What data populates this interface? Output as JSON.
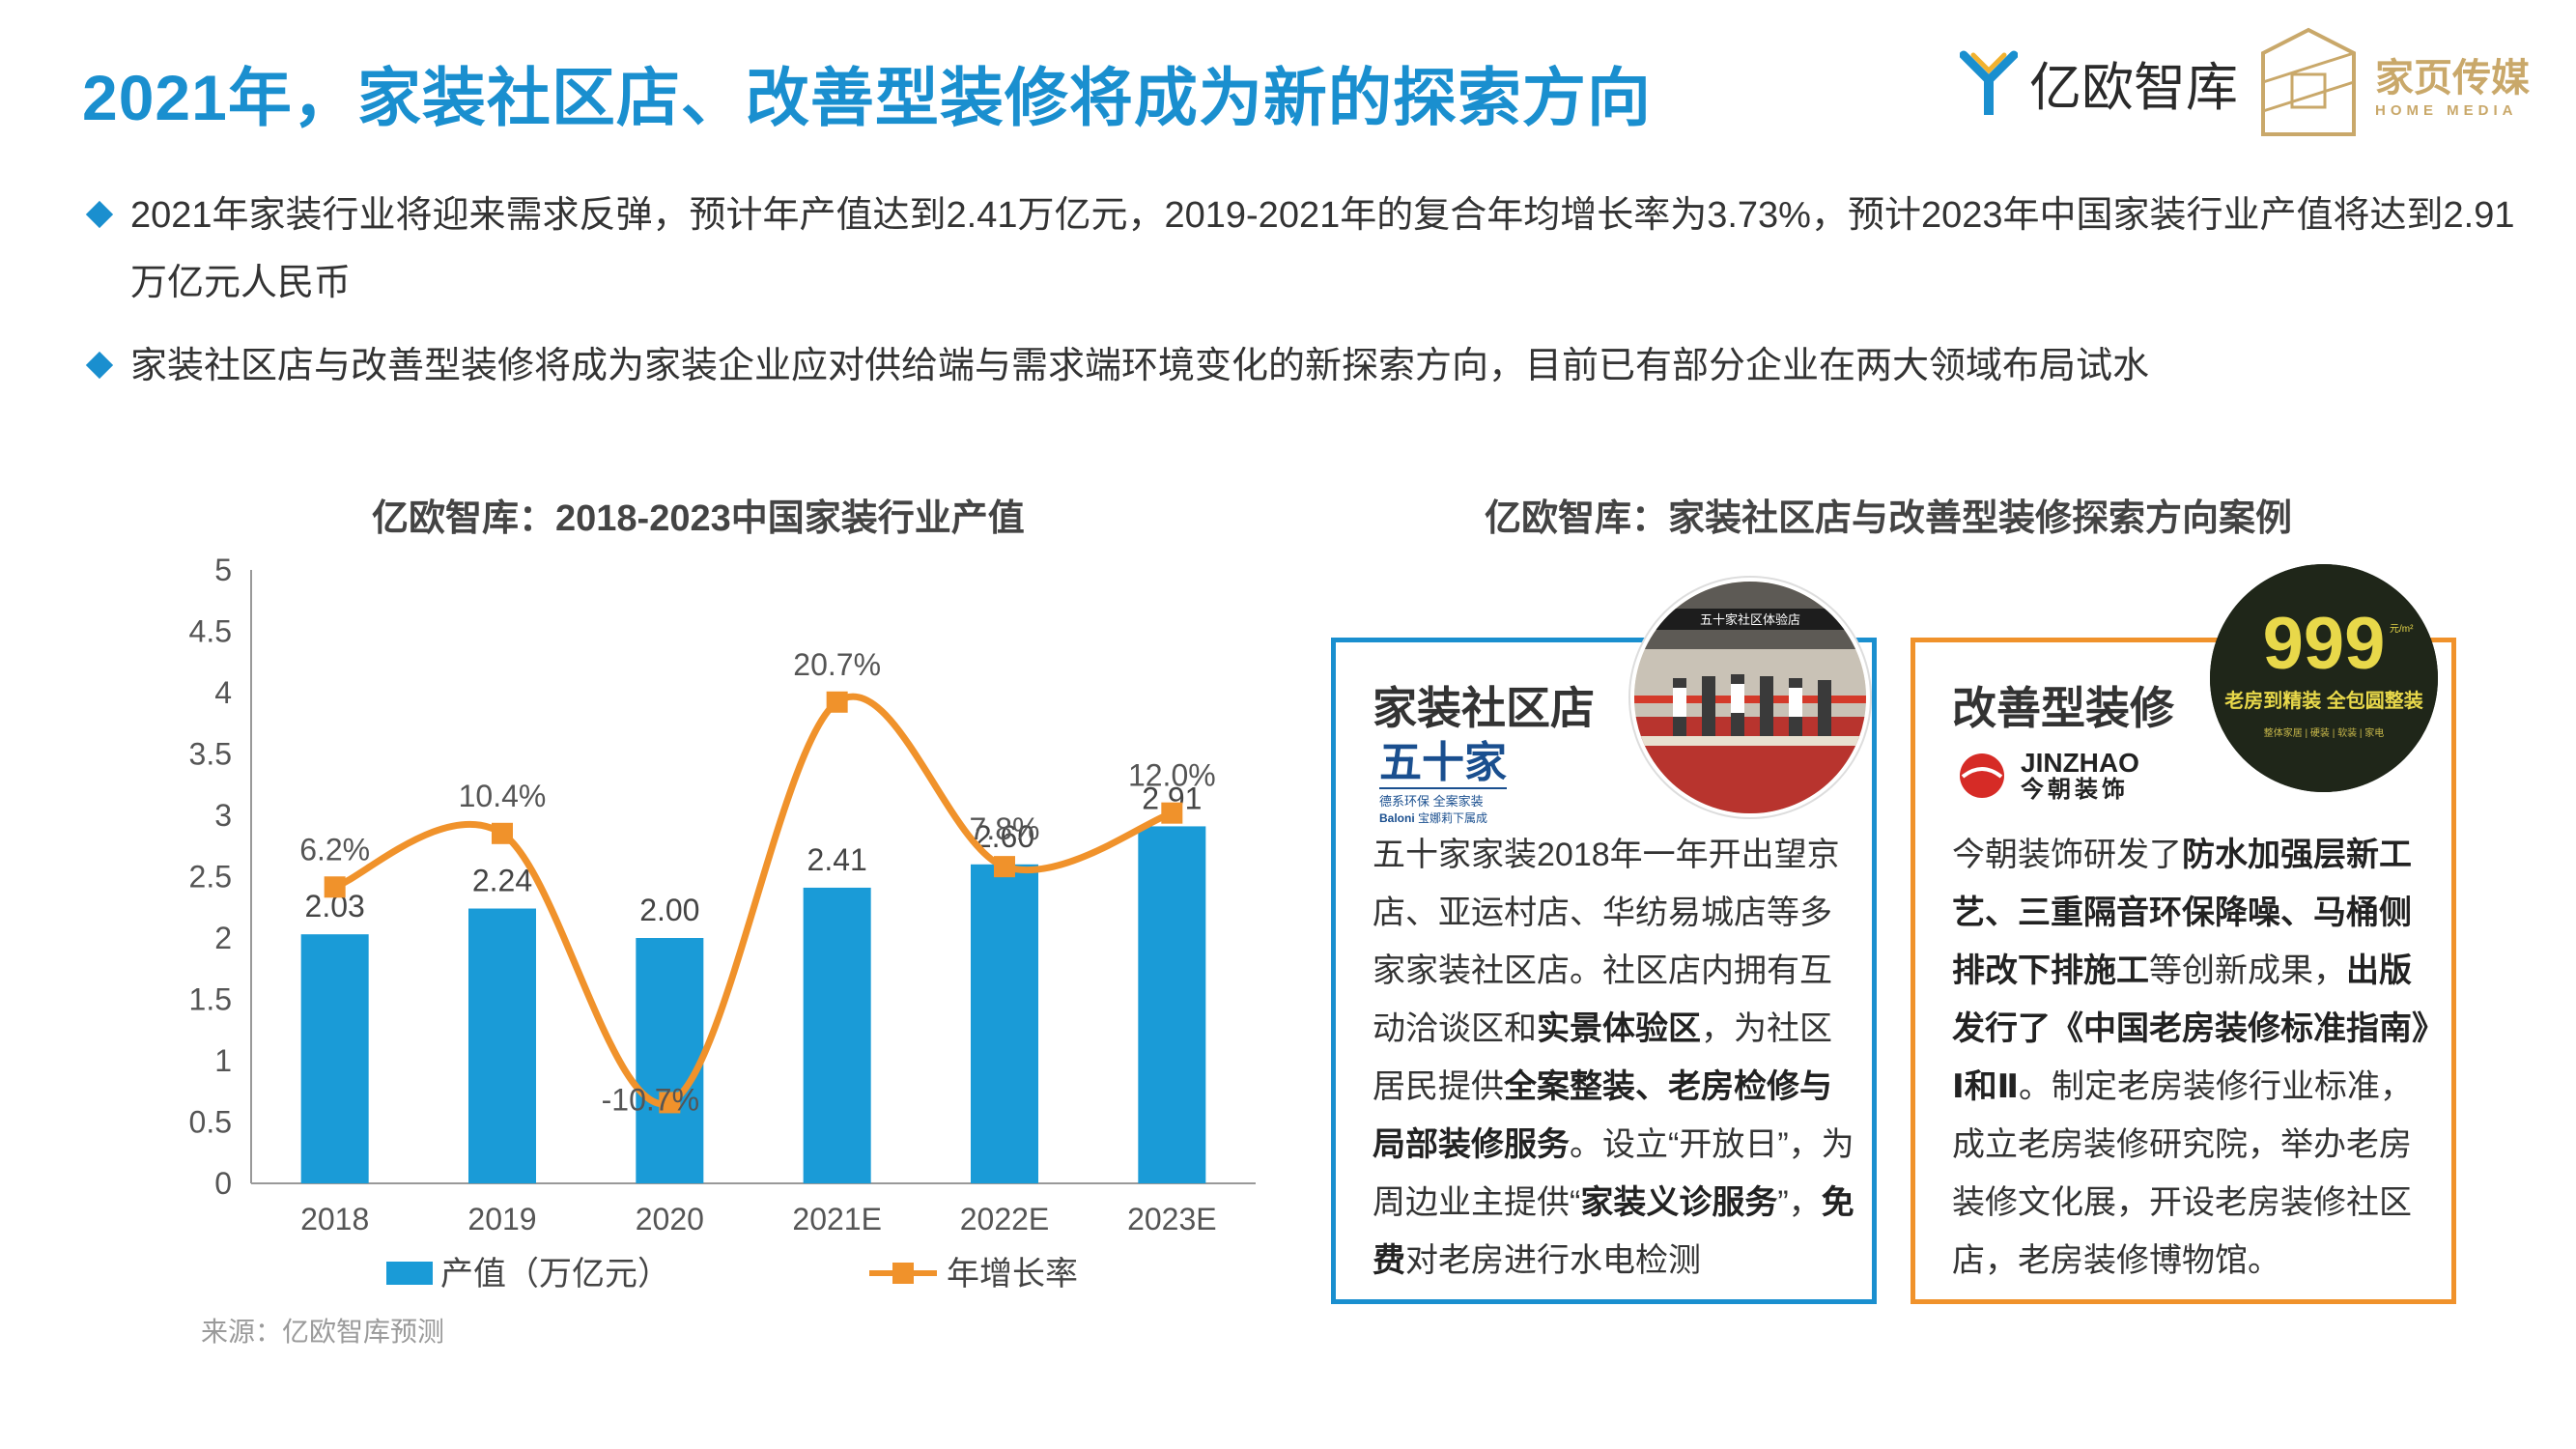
{
  "header": {
    "title": "2021年，家装社区店、改善型装修将成为新的探索方向",
    "logo_yiou_text": "亿欧智库",
    "logo_hm_cn": "家页传媒",
    "logo_hm_en": "HOME MEDIA"
  },
  "bullets": [
    {
      "text": "2021年家装行业将迎来需求反弹，预计年产值达到2.41万亿元，2019-2021年的复合年均增长率为3.73%，预计2023年中国家装行业产值将达到2.91万亿元人民币"
    },
    {
      "text": "家装社区店与改善型装修将成为家装企业应对供给端与需求端环境变化的新探索方向，目前已有部分企业在两大领域布局试水"
    }
  ],
  "left_panel": {
    "title": "亿欧智库：2018-2023中国家装行业产值",
    "source": "来源：亿欧智库预测"
  },
  "right_panel": {
    "title": "亿欧智库：家装社区店与改善型装修探索方向案例",
    "case1": {
      "heading": "家装社区店",
      "logo_cn": "五十家",
      "logo_sub": "德系环保 全案家装",
      "logo_en": "Baloni",
      "logo_en_sub": "宝娜莉下属成",
      "body_html": "五十家家装2018年一年开出望京店、亚运村店、华纺易城店等多家家装社区店。社区店内拥有互动洽谈区和<b>实景体验区</b>，为社区居民提供<b>全案整装、老房检修与局部装修服务</b>。设立“开放日”，为周边业主提供“<b>家装义诊服务</b>”，<b>免费</b>对老房进行水电检测",
      "photo_sign": "五十家社区体验店"
    },
    "case2": {
      "heading": "改善型装修",
      "logo_en": "JINZHAO",
      "logo_cn": "今朝装饰",
      "body_html": "今朝装饰研发了<b>防水加强层新工艺、三重隔音环保降噪、马桶侧排改下排施工</b>等创新成果，<b>出版发行了《中国老房装修标准指南》Ⅰ和Ⅱ</b>。制定老房装修行业标准，成立老房装修研究院，举办老房装修文化展，开设老房装修社区店，老房装修博物馆。",
      "photo_big": "999",
      "photo_unit": "元/m²",
      "photo_line": "老房到精装 全包圆整装",
      "photo_small": "整体家居 | 硬装 | 软装 | 家电"
    }
  },
  "chart_data": {
    "type": "bar",
    "categories": [
      "2018",
      "2019",
      "2020",
      "2021E",
      "2022E",
      "2023E"
    ],
    "ylim": [
      0,
      5
    ],
    "yticks": [
      "0",
      "0.5",
      "1",
      "1.5",
      "2",
      "2.5",
      "3",
      "3.5",
      "4",
      "4.5",
      "5"
    ],
    "series": [
      {
        "name": "产值（万亿元）",
        "type": "bar",
        "color": "#1a9bd7",
        "values": [
          2.03,
          2.24,
          2.0,
          2.41,
          2.6,
          2.91
        ],
        "labels": [
          "2.03",
          "2.24",
          "2.00",
          "2.41",
          "2.60",
          "2.91"
        ]
      },
      {
        "name": "年增长率",
        "type": "line",
        "color": "#f0922b",
        "values": [
          6.2,
          10.4,
          -10.7,
          20.7,
          7.8,
          12.0
        ],
        "labels": [
          "6.2%",
          "10.4%",
          "-10.7%",
          "20.7%",
          "7.8%",
          "12.0%"
        ]
      }
    ],
    "legend_position": "bottom",
    "grid": false
  }
}
